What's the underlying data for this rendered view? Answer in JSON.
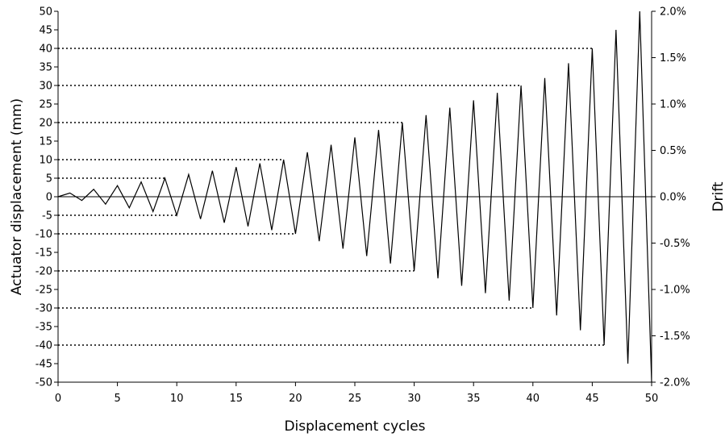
{
  "chart_data": {
    "type": "line",
    "xlabel": "Displacement cycles",
    "ylabel": "Actuator displacement (mm)",
    "y2label": "Drift",
    "xlim": [
      0,
      50
    ],
    "ylim": [
      -50,
      50
    ],
    "y2lim": [
      -2.0,
      2.0
    ],
    "x_ticks": [
      "0",
      "5",
      "10",
      "15",
      "20",
      "25",
      "30",
      "35",
      "40",
      "45",
      "50"
    ],
    "y_ticks": [
      "50",
      "45",
      "40",
      "35",
      "30",
      "25",
      "20",
      "15",
      "10",
      "5",
      "0",
      "-5",
      "-10",
      "-15",
      "-20",
      "-25",
      "-30",
      "-35",
      "-40",
      "-45",
      "-50"
    ],
    "y2_ticks": [
      "2.0%",
      "1.5%",
      "1.0%",
      "0.5%",
      "0.0%",
      "-0.5%",
      "-1.0%",
      "-1.5%",
      "-2.0%"
    ],
    "grid": false,
    "legend": "none",
    "line_color": "#000000",
    "series": [
      {
        "x": [
          0,
          1,
          2,
          3,
          4,
          5,
          6,
          7,
          8,
          9,
          10,
          11,
          12,
          13,
          14,
          15,
          16,
          17,
          18,
          19,
          20,
          21,
          22,
          23,
          24,
          25,
          26,
          27,
          28,
          29,
          30,
          31,
          32,
          33,
          34,
          35,
          36,
          37,
          38,
          39,
          40,
          41,
          42,
          43,
          44,
          45,
          46,
          47,
          48,
          49,
          50
        ],
        "values": [
          0,
          1,
          -1,
          2,
          -2,
          3,
          -3,
          4,
          -4,
          5,
          -5,
          6,
          -6,
          7,
          -7,
          8,
          -8,
          9,
          -9,
          10,
          -10,
          12,
          -12,
          14,
          -14,
          16,
          -16,
          18,
          -18,
          20,
          -20,
          22,
          -22,
          24,
          -24,
          26,
          -26,
          28,
          -28,
          30,
          -30,
          32,
          -32,
          36,
          -36,
          40,
          -40,
          45,
          -45,
          50,
          -50
        ]
      }
    ],
    "reference_lines": [
      {
        "y": 5,
        "x_end": 9
      },
      {
        "y": 10,
        "x_end": 19
      },
      {
        "y": 20,
        "x_end": 29
      },
      {
        "y": 30,
        "x_end": 39
      },
      {
        "y": 40,
        "x_end": 45
      },
      {
        "y": -5,
        "x_end": 10
      },
      {
        "y": -10,
        "x_end": 20
      },
      {
        "y": -20,
        "x_end": 30
      },
      {
        "y": -30,
        "x_end": 40
      },
      {
        "y": -40,
        "x_end": 46
      }
    ]
  }
}
